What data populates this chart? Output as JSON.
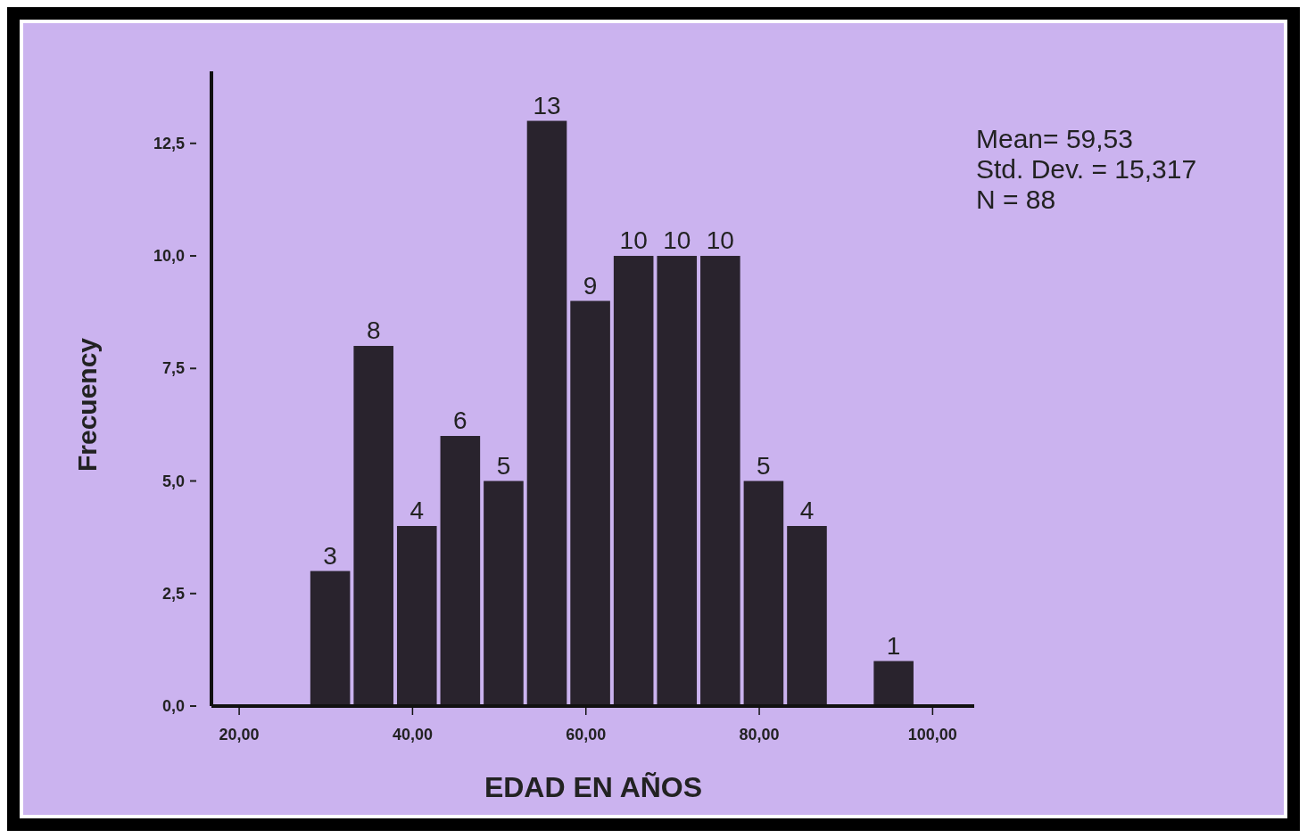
{
  "chart_data": {
    "type": "histogram",
    "xlabel": "EDAD EN AÑOS",
    "ylabel": "Frecuency",
    "bins": [
      28,
      33,
      38,
      43,
      48,
      53,
      58,
      63,
      68,
      73,
      78,
      83,
      88,
      93,
      98
    ],
    "values": [
      3,
      8,
      4,
      6,
      5,
      13,
      9,
      10,
      10,
      10,
      5,
      4,
      0,
      1
    ],
    "color": "#29232d",
    "value_labels": [
      "3",
      "8",
      "4",
      "6",
      "5",
      "13",
      "9",
      "10",
      "10",
      "10",
      "5",
      "4",
      null,
      "1"
    ],
    "xlim": [
      16.8,
      104.8
    ],
    "xticks": [
      {
        "value": 20,
        "label": "20,00"
      },
      {
        "value": 40,
        "label": "40,00"
      },
      {
        "value": 60,
        "label": "60,00"
      },
      {
        "value": 80,
        "label": "80,00"
      },
      {
        "value": 100,
        "label": "100,00"
      }
    ],
    "ylim": [
      0,
      14.1
    ],
    "yticks": [
      {
        "value": 0,
        "label": "0,0"
      },
      {
        "value": 2.5,
        "label": "2,5"
      },
      {
        "value": 5,
        "label": "5,0"
      },
      {
        "value": 7.5,
        "label": "7,5"
      },
      {
        "value": 10,
        "label": "10,0"
      },
      {
        "value": 12.5,
        "label": "12,5"
      }
    ],
    "annotations": [
      "Mean= 59,53",
      "Std. Dev. = 15,317",
      "N = 88"
    ],
    "grid": false
  }
}
